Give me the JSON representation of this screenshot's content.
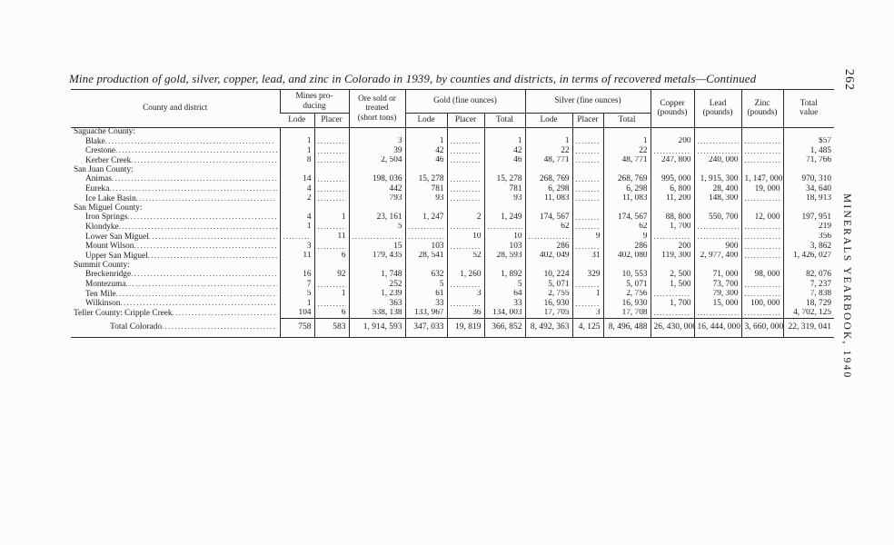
{
  "page": {
    "title": "Mine production of gold, silver, copper, lead, and zinc in Colorado in 1939, by counties and districts, in terms of recovered metals—Continued",
    "page_number": "262",
    "running_head": "MINERALS YEARBOOK, 1940"
  },
  "table": {
    "header": {
      "stub": "County and district",
      "mines_group": "Mines pro-\nducing",
      "ore_sold": "Ore sold or\ntreated\n(short tons)",
      "gold_group": "Gold (fine ounces)",
      "silver_group": "Silver (fine ounces)",
      "copper": "Copper\n(pounds)",
      "lead": "Lead\n(pounds)",
      "zinc": "Zinc\n(pounds)",
      "total_value": "Total\nvalue",
      "sub": [
        "Lode",
        "Placer",
        "Lode",
        "Placer",
        "Total",
        "Lode",
        "Placer",
        "Total"
      ]
    },
    "rows": [
      {
        "label": "Saguache County:",
        "type": "group",
        "cells": null
      },
      {
        "label": "Blake",
        "type": "district",
        "cells": [
          "1",
          "",
          "3",
          "1",
          "",
          "1",
          "1",
          "",
          "1",
          "200",
          "",
          "",
          "$57"
        ]
      },
      {
        "label": "Crestone",
        "type": "district",
        "cells": [
          "1",
          "",
          "39",
          "42",
          "",
          "42",
          "22",
          "",
          "22",
          "",
          "",
          "",
          "1, 485"
        ]
      },
      {
        "label": "Kerber Creek",
        "type": "district",
        "cells": [
          "8",
          "",
          "2, 504",
          "46",
          "",
          "46",
          "48, 771",
          "",
          "48, 771",
          "247, 800",
          "240, 000",
          "",
          "71, 766"
        ]
      },
      {
        "label": "San Juan County:",
        "type": "group",
        "cells": null
      },
      {
        "label": "Animas",
        "type": "district",
        "cells": [
          "14",
          "",
          "198, 036",
          "15, 278",
          "",
          "15, 278",
          "268, 769",
          "",
          "268, 769",
          "995, 000",
          "1, 915, 300",
          "1, 147, 000",
          "970, 310"
        ]
      },
      {
        "label": "Eureka",
        "type": "district",
        "cells": [
          "4",
          "",
          "442",
          "781",
          "",
          "781",
          "6, 298",
          "",
          "6, 298",
          "6, 800",
          "28, 400",
          "19, 000",
          "34, 640"
        ]
      },
      {
        "label": "Ice Lake Basin",
        "type": "district",
        "cells": [
          "2",
          "",
          "793",
          "93",
          "",
          "93",
          "11, 083",
          "",
          "11, 083",
          "11, 200",
          "148, 300",
          "",
          "18, 913"
        ]
      },
      {
        "label": "San Miguel County:",
        "type": "group",
        "cells": null
      },
      {
        "label": "Iron Springs",
        "type": "district",
        "cells": [
          "4",
          "1",
          "23, 161",
          "1, 247",
          "2",
          "1, 249",
          "174, 567",
          "",
          "174, 567",
          "88, 800",
          "550, 700",
          "12, 000",
          "197, 951"
        ]
      },
      {
        "label": "Klondyke",
        "type": "district",
        "cells": [
          "1",
          "",
          "5",
          "",
          "",
          "",
          "62",
          "",
          "62",
          "1, 700",
          "",
          "",
          "219"
        ]
      },
      {
        "label": "Lower San Miguel",
        "type": "district",
        "cells": [
          "",
          "11",
          "",
          "",
          "10",
          "10",
          "",
          "9",
          "9",
          "",
          "",
          "",
          "356"
        ]
      },
      {
        "label": "Mount Wilson",
        "type": "district",
        "cells": [
          "3",
          "",
          "15",
          "103",
          "",
          "103",
          "286",
          "",
          "286",
          "200",
          "900",
          "",
          "3, 862"
        ]
      },
      {
        "label": "Upper San Miguel",
        "type": "district",
        "cells": [
          "11",
          "6",
          "179, 435",
          "28, 541",
          "52",
          "28, 593",
          "402, 049",
          "31",
          "402, 080",
          "119, 300",
          "2, 977, 400",
          "",
          "1, 426, 027"
        ]
      },
      {
        "label": "Summit County:",
        "type": "group",
        "cells": null
      },
      {
        "label": "Breckenridge",
        "type": "district",
        "cells": [
          "16",
          "92",
          "1, 748",
          "632",
          "1, 260",
          "1, 892",
          "10, 224",
          "329",
          "10, 553",
          "2, 500",
          "71, 000",
          "98, 000",
          "82, 076"
        ]
      },
      {
        "label": "Montezuma",
        "type": "district",
        "cells": [
          "7",
          "",
          "252",
          "5",
          "",
          "5",
          "5, 071",
          "",
          "5, 071",
          "1, 500",
          "73, 700",
          "",
          "7, 237"
        ]
      },
      {
        "label": "Ten Mile",
        "type": "district",
        "cells": [
          "5",
          "1",
          "1, 239",
          "61",
          "3",
          "64",
          "2, 755",
          "1",
          "2, 756",
          "",
          "79, 300",
          "",
          "7, 838"
        ]
      },
      {
        "label": "Wilkinson",
        "type": "district",
        "cells": [
          "1",
          "",
          "363",
          "33",
          "",
          "33",
          "16, 930",
          "",
          "16, 930",
          "1, 700",
          "15, 000",
          "100, 000",
          "18, 729"
        ]
      },
      {
        "label": "Teller County: Cripple Creek",
        "type": "county-line",
        "cells": [
          "104",
          "6",
          "538, 138",
          "133, 967",
          "36",
          "134, 003",
          "17, 705",
          "3",
          "17, 708",
          "",
          "",
          "",
          "4, 702, 125"
        ]
      },
      {
        "label": "Total Colorado",
        "type": "total",
        "cells": [
          "758",
          "583",
          "1, 914, 593",
          "347, 033",
          "19, 819",
          "366, 852",
          "8, 492, 363",
          "4, 125",
          "8, 496, 488",
          "26, 430, 000",
          "16, 444, 000",
          "3, 660, 000",
          "22, 319, 041"
        ]
      }
    ]
  }
}
